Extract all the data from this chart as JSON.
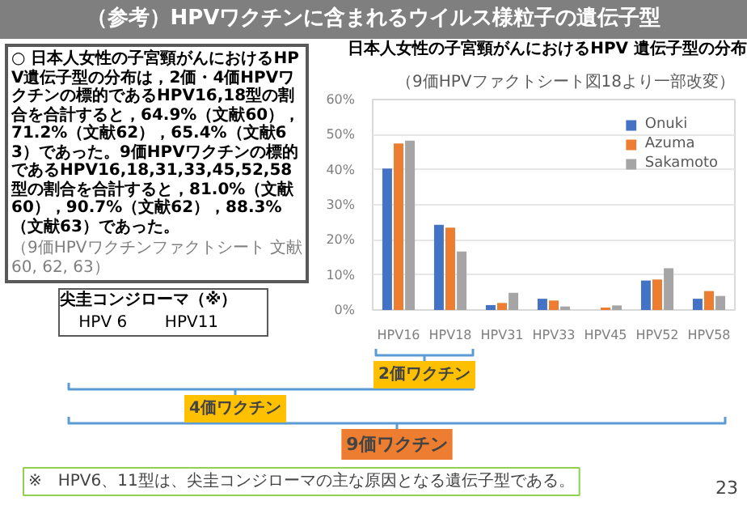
{
  "chart_data": {
    "type": "bar",
    "title": "日本人女性の子宮頸がんにおけるHPV 遺伝子型の分布",
    "subtitle": "（9価HPVファクトシート図18より一部改変）",
    "categories": [
      "HPV16",
      "HPV18",
      "HPV31",
      "HPV33",
      "HPV45",
      "HPV52",
      "HPV58"
    ],
    "series": [
      {
        "name": "Onuki",
        "color": "#4472c4",
        "values": [
          40.3,
          24.3,
          1.4,
          3.2,
          0,
          8.4,
          3.2
        ]
      },
      {
        "name": "Azuma",
        "color": "#ed7d31",
        "values": [
          47.5,
          23.5,
          2.0,
          2.7,
          0.7,
          8.7,
          5.4
        ]
      },
      {
        "name": "Sakamoto",
        "color": "#a5a5a5",
        "values": [
          48.3,
          16.7,
          4.9,
          1.0,
          1.3,
          11.9,
          4.0
        ]
      }
    ],
    "ylim": [
      0,
      60
    ],
    "yticks": [
      {
        "value": 0,
        "label": "0%"
      },
      {
        "value": 10,
        "label": "10%"
      },
      {
        "value": 20,
        "label": "20%"
      },
      {
        "value": 30,
        "label": "30%"
      },
      {
        "value": 40,
        "label": "40%"
      },
      {
        "value": 50,
        "label": "50%"
      },
      {
        "value": 60,
        "label": "60%"
      }
    ],
    "grid": "y",
    "legend": "top right",
    "annotations": [
      "（参考）HPVワクチンに含まれるウイルス様粒子の遺伝子型",
      "○ 日本人女性の子宮頸がんにおけるHPV遺伝子型の分布は，2価・4価HPVワクチンの標的であるHPV16,18型の割合を合計すると，64.9%（文献60），71.2%（文献62），65.4%（文献63）であった。9価HPVワクチンの標的であるHPV16,18,31,33,45,52,58型の割合を合計すると，81.0%（文献60），90.7%（文献62），88.3%（文献63）であった。",
      "（9価HPVワクチンファクトシート 文献60, 62, 63）",
      "尖圭コンジローマ（※）",
      "HPV 6",
      "HPV11",
      "2価ワクチン",
      "4価ワクチン",
      "9価ワクチン",
      "※　HPV6、11型は、尖圭コンジローマの主な原因となる遺伝子型である。",
      "23"
    ]
  }
}
